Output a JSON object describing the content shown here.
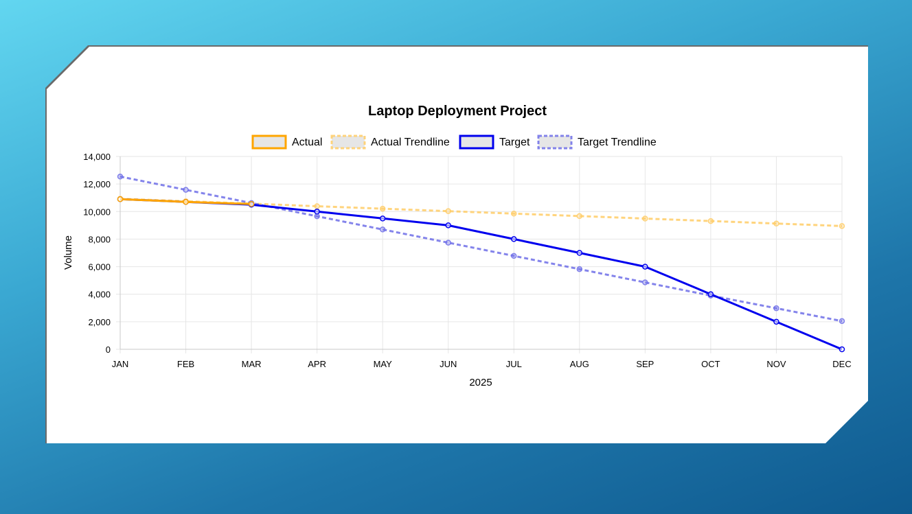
{
  "colors": {
    "actual": "#FFA500",
    "actual_trend": "#FFCC66",
    "target": "#0000EE",
    "target_trend": "#6F6FE8",
    "grid": "#E6E6E6",
    "text": "#000000"
  },
  "chart_data": {
    "type": "line",
    "title": "Laptop Deployment Project",
    "xlabel": "2025",
    "ylabel": "Volume",
    "ylim": [
      0,
      14000
    ],
    "yticks": [
      0,
      2000,
      4000,
      6000,
      8000,
      10000,
      12000,
      14000
    ],
    "ytick_labels": [
      "0",
      "2,000",
      "4,000",
      "6,000",
      "8,000",
      "10,000",
      "12,000",
      "14,000"
    ],
    "categories": [
      "JAN",
      "FEB",
      "MAR",
      "APR",
      "MAY",
      "JUN",
      "JUL",
      "AUG",
      "SEP",
      "OCT",
      "NOV",
      "DEC"
    ],
    "grid": true,
    "legend_position": "top",
    "series": [
      {
        "name": "Actual",
        "style": "solid",
        "color": "#FFA500",
        "values": [
          10900,
          10700,
          10550,
          null,
          null,
          null,
          null,
          null,
          null,
          null,
          null,
          null
        ]
      },
      {
        "name": "Actual Trendline",
        "style": "dashed",
        "color": "#FFCC66",
        "values": [
          10930,
          10750,
          10570,
          10390,
          10210,
          10030,
          9850,
          9670,
          9490,
          9310,
          9130,
          8950
        ]
      },
      {
        "name": "Target",
        "style": "solid",
        "color": "#0000EE",
        "values": [
          10900,
          10700,
          10500,
          10000,
          9500,
          9000,
          8000,
          7000,
          6000,
          4000,
          2000,
          0
        ]
      },
      {
        "name": "Target Trendline",
        "style": "dashed",
        "color": "#6F6FE8",
        "values": [
          12540,
          11580,
          10620,
          9660,
          8700,
          7740,
          6780,
          5820,
          4860,
          3900,
          2980,
          2050
        ]
      }
    ]
  }
}
